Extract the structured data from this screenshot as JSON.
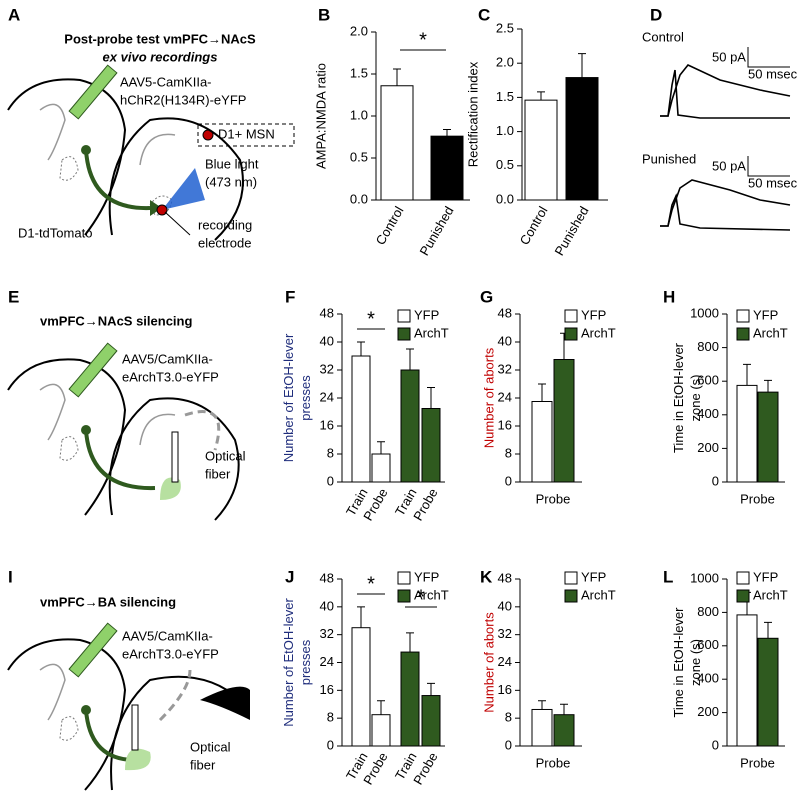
{
  "panels": {
    "A": {
      "letter": "A",
      "title": "Post-probe test vmPFC→NAcS",
      "subtitle": "ex vivo recordings",
      "virus": [
        "AAV5-CamKIIa-",
        "hChR2(H134R)-eYFP"
      ],
      "legend": "D1+ MSN",
      "light": [
        "Blue light",
        "(473 nm)"
      ],
      "mouse": "D1-tdTomato",
      "electrode": [
        "recording",
        "electrode"
      ]
    },
    "D": {
      "letter": "D",
      "labels": [
        "Control",
        "Punished"
      ],
      "scale_y": "50 pA",
      "scale_x": "50 msec"
    },
    "E": {
      "letter": "E",
      "title": "vmPFC→NAcS silencing",
      "virus": [
        "AAV5/CamKIIa-",
        "eArchT3.0-eYFP"
      ],
      "fiber": [
        "Optical",
        "fiber"
      ]
    },
    "I": {
      "letter": "I",
      "title": "vmPFC→BA silencing",
      "virus": [
        "AAV5/CamKIIa-",
        "eArchT3.0-eYFP"
      ],
      "fiber": [
        "Optical",
        "fiber"
      ]
    }
  },
  "chart_data": [
    {
      "type": "bar",
      "panel": "B",
      "ylabel": [
        "AMPA:NMDA ratio"
      ],
      "categories": [
        "Control",
        "Punished"
      ],
      "values": [
        1.36,
        0.76
      ],
      "errors": [
        0.2,
        0.08
      ],
      "colors": [
        "#ffffff",
        "#000000"
      ],
      "ylim": [
        0,
        2
      ],
      "yticks": [
        {
          "value": 0,
          "label": "0.0"
        },
        {
          "value": 0.5,
          "label": "0.5"
        },
        {
          "value": 1,
          "label": "1.0"
        },
        {
          "value": 1.5,
          "label": "1.5"
        },
        {
          "value": 2,
          "label": "2.0"
        }
      ],
      "annotations": [
        "*"
      ]
    },
    {
      "type": "bar",
      "panel": "C",
      "ylabel": [
        "Rectification index"
      ],
      "categories": [
        "Control",
        "Punished"
      ],
      "values": [
        1.46,
        1.79
      ],
      "errors": [
        0.12,
        0.35
      ],
      "colors": [
        "#ffffff",
        "#000000"
      ],
      "ylim": [
        0,
        2.5
      ],
      "yticks": [
        {
          "value": 0,
          "label": "0.0"
        },
        {
          "value": 0.5,
          "label": "0.5"
        },
        {
          "value": 1,
          "label": "1.0"
        },
        {
          "value": 1.5,
          "label": "1.5"
        },
        {
          "value": 2,
          "label": "2.0"
        },
        {
          "value": 2.5,
          "label": "2.5"
        }
      ]
    },
    {
      "type": "bar",
      "panel": "F",
      "ylabel": [
        "Number of EtOH-lever",
        "presses"
      ],
      "ylabel_color": "#1f2d7c",
      "categories": [
        "Train",
        "Probe",
        "Train",
        "Probe"
      ],
      "series": [
        {
          "name": "YFP",
          "color": "#ffffff",
          "values": [
            36,
            8,
            null,
            null
          ],
          "errors": [
            4,
            3.5,
            null,
            null
          ]
        },
        {
          "name": "ArchT",
          "color": "#2f5a1f",
          "values": [
            null,
            null,
            32,
            21
          ],
          "errors": [
            null,
            null,
            6,
            6
          ]
        }
      ],
      "ylim": [
        0,
        48
      ],
      "yticks": [
        0,
        8,
        16,
        24,
        32,
        40,
        48
      ],
      "annotations": [
        "*"
      ]
    },
    {
      "type": "bar",
      "panel": "G",
      "ylabel": [
        "Number of aborts"
      ],
      "ylabel_color": "#c00000",
      "categories": [
        "Probe"
      ],
      "series": [
        {
          "name": "YFP",
          "color": "#ffffff",
          "values": [
            23
          ],
          "errors": [
            5
          ]
        },
        {
          "name": "ArchT",
          "color": "#2f5a1f",
          "values": [
            35
          ],
          "errors": [
            7.5
          ]
        }
      ],
      "ylim": [
        0,
        48
      ],
      "yticks": [
        0,
        8,
        16,
        24,
        32,
        40,
        48
      ]
    },
    {
      "type": "bar",
      "panel": "H",
      "ylabel": [
        "Time in EtOH-lever",
        "zone (s)"
      ],
      "categories": [
        "Probe"
      ],
      "series": [
        {
          "name": "YFP",
          "color": "#ffffff",
          "values": [
            575
          ],
          "errors": [
            125
          ]
        },
        {
          "name": "ArchT",
          "color": "#2f5a1f",
          "values": [
            535
          ],
          "errors": [
            70
          ]
        }
      ],
      "ylim": [
        0,
        1000
      ],
      "yticks": [
        0,
        200,
        400,
        600,
        800,
        1000
      ]
    },
    {
      "type": "bar",
      "panel": "J",
      "ylabel": [
        "Number of EtOH-lever",
        "presses"
      ],
      "ylabel_color": "#1f2d7c",
      "categories": [
        "Train",
        "Probe",
        "Train",
        "Probe"
      ],
      "series": [
        {
          "name": "YFP",
          "color": "#ffffff",
          "values": [
            34,
            9,
            null,
            null
          ],
          "errors": [
            6,
            4,
            null,
            null
          ]
        },
        {
          "name": "ArchT",
          "color": "#2f5a1f",
          "values": [
            null,
            null,
            27,
            14.5
          ],
          "errors": [
            null,
            null,
            5.5,
            3.5
          ]
        }
      ],
      "ylim": [
        0,
        48
      ],
      "yticks": [
        0,
        8,
        16,
        24,
        32,
        40,
        48
      ],
      "annotations": [
        "*",
        "*"
      ]
    },
    {
      "type": "bar",
      "panel": "K",
      "ylabel": [
        "Number of aborts"
      ],
      "ylabel_color": "#c00000",
      "categories": [
        "Probe"
      ],
      "series": [
        {
          "name": "YFP",
          "color": "#ffffff",
          "values": [
            10.5
          ],
          "errors": [
            2.5
          ]
        },
        {
          "name": "ArchT",
          "color": "#2f5a1f",
          "values": [
            9
          ],
          "errors": [
            3
          ]
        }
      ],
      "ylim": [
        0,
        48
      ],
      "yticks": [
        0,
        8,
        16,
        24,
        32,
        40,
        48
      ]
    },
    {
      "type": "bar",
      "panel": "L",
      "ylabel": [
        "Time in EtOH-lever",
        "zone (s)"
      ],
      "categories": [
        "Probe"
      ],
      "series": [
        {
          "name": "YFP",
          "color": "#ffffff",
          "values": [
            785
          ],
          "errors": [
            135
          ]
        },
        {
          "name": "ArchT",
          "color": "#2f5a1f",
          "values": [
            645
          ],
          "errors": [
            95
          ]
        }
      ],
      "ylim": [
        0,
        1000
      ],
      "yticks": [
        0,
        200,
        400,
        600,
        800,
        1000
      ]
    }
  ]
}
